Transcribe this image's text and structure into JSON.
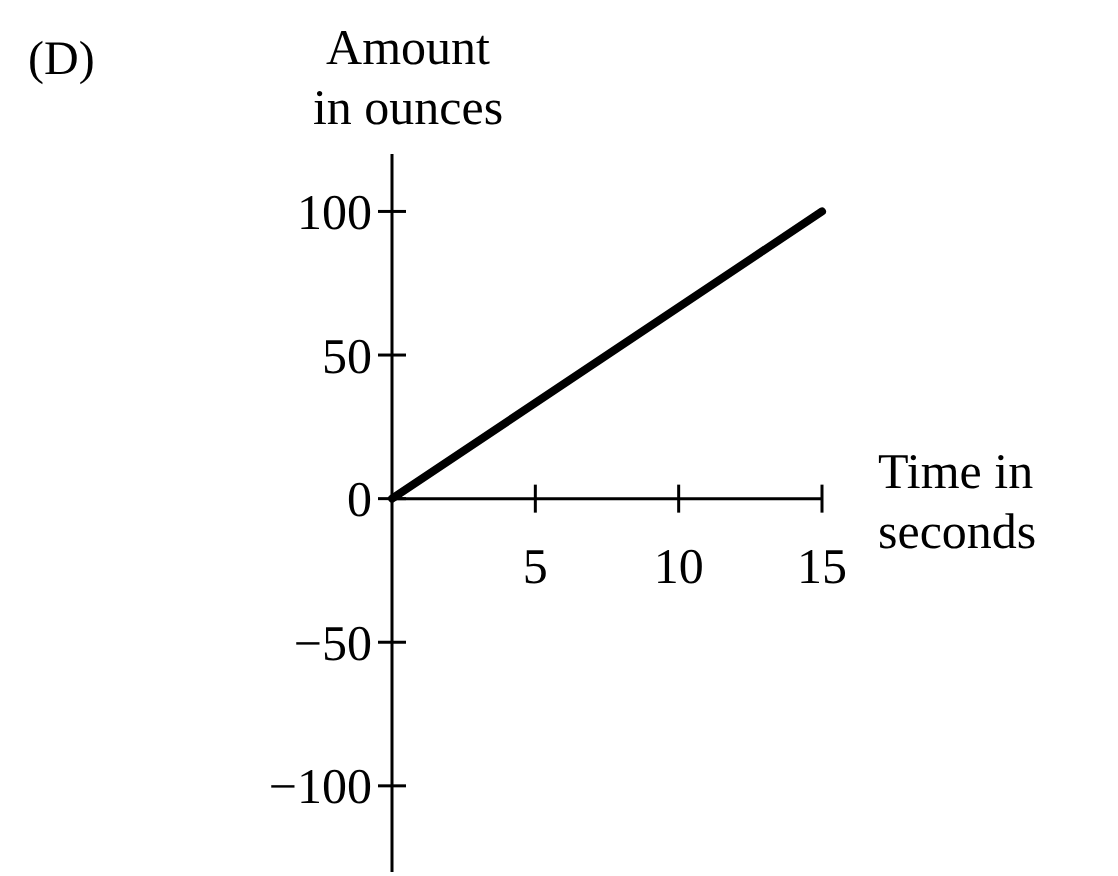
{
  "chart_data": {
    "type": "line",
    "title": "(D)",
    "ylabel": "Amount\nin ounces",
    "xlabel": "Time in\nseconds",
    "x": [
      0,
      15
    ],
    "series": [
      {
        "color": "#000000",
        "values": [
          0,
          100
        ]
      }
    ],
    "xlim": [
      0,
      15
    ],
    "xticks": [
      5,
      10,
      15
    ],
    "ylim": [
      -130,
      120
    ],
    "yticks": [
      -100,
      -50,
      0,
      50,
      100
    ],
    "grid": false,
    "marker": "none",
    "line_style": "solid"
  }
}
